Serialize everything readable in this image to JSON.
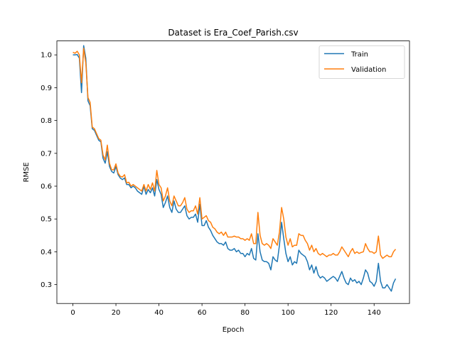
{
  "chart_data": {
    "type": "line",
    "title": "Dataset is Era_Coef_Parish.csv",
    "xlabel": "Epoch",
    "ylabel": "RMSE",
    "xlim": [
      -7.45,
      156.45
    ],
    "ylim": [
      0.2425,
      1.0425
    ],
    "xticks": [
      0,
      20,
      40,
      60,
      80,
      100,
      120,
      140
    ],
    "yticks": [
      0.3,
      0.4,
      0.5,
      0.6,
      0.7,
      0.8,
      0.9,
      1.0
    ],
    "ytick_labels": [
      "0.3",
      "0.4",
      "0.5",
      "0.6",
      "0.7",
      "0.8",
      "0.9",
      "1.0"
    ],
    "grid": false,
    "legend": "top-right",
    "series": [
      {
        "name": "Train",
        "color": "#1f77b4",
        "values": [
          1.0,
          1.0,
          1.001,
          0.99,
          0.885,
          1.028,
          0.99,
          0.86,
          0.845,
          0.775,
          0.77,
          0.755,
          0.74,
          0.735,
          0.685,
          0.67,
          0.705,
          0.66,
          0.645,
          0.64,
          0.66,
          0.635,
          0.625,
          0.62,
          0.625,
          0.605,
          0.605,
          0.595,
          0.6,
          0.595,
          0.585,
          0.58,
          0.575,
          0.6,
          0.575,
          0.59,
          0.58,
          0.595,
          0.57,
          0.62,
          0.59,
          0.575,
          0.535,
          0.55,
          0.57,
          0.535,
          0.52,
          0.555,
          0.53,
          0.52,
          0.52,
          0.53,
          0.54,
          0.51,
          0.5,
          0.505,
          0.505,
          0.515,
          0.49,
          0.545,
          0.48,
          0.48,
          0.495,
          0.475,
          0.465,
          0.45,
          0.44,
          0.43,
          0.425,
          0.425,
          0.42,
          0.43,
          0.41,
          0.405,
          0.405,
          0.41,
          0.4,
          0.405,
          0.395,
          0.395,
          0.385,
          0.395,
          0.39,
          0.41,
          0.38,
          0.375,
          0.455,
          0.4,
          0.375,
          0.37,
          0.37,
          0.365,
          0.345,
          0.385,
          0.375,
          0.37,
          0.42,
          0.49,
          0.44,
          0.395,
          0.37,
          0.385,
          0.36,
          0.37,
          0.365,
          0.405,
          0.395,
          0.39,
          0.385,
          0.37,
          0.345,
          0.36,
          0.335,
          0.355,
          0.33,
          0.32,
          0.325,
          0.32,
          0.31,
          0.315,
          0.32,
          0.325,
          0.32,
          0.31,
          0.325,
          0.34,
          0.32,
          0.305,
          0.3,
          0.32,
          0.31,
          0.315,
          0.305,
          0.31,
          0.3,
          0.32,
          0.345,
          0.335,
          0.31,
          0.305,
          0.295,
          0.31,
          0.365,
          0.31,
          0.29,
          0.29,
          0.3,
          0.29,
          0.28,
          0.305,
          0.318
        ]
      },
      {
        "name": "Validation",
        "color": "#ff7f0e",
        "values": [
          1.008,
          1.005,
          1.011,
          1.0,
          0.915,
          1.02,
          0.975,
          0.87,
          0.855,
          0.78,
          0.775,
          0.76,
          0.745,
          0.74,
          0.695,
          0.68,
          0.725,
          0.67,
          0.65,
          0.65,
          0.668,
          0.64,
          0.63,
          0.628,
          0.635,
          0.61,
          0.612,
          0.6,
          0.605,
          0.6,
          0.595,
          0.59,
          0.585,
          0.605,
          0.585,
          0.605,
          0.59,
          0.61,
          0.585,
          0.648,
          0.605,
          0.595,
          0.555,
          0.57,
          0.595,
          0.555,
          0.54,
          0.57,
          0.555,
          0.54,
          0.54,
          0.55,
          0.565,
          0.53,
          0.52,
          0.525,
          0.525,
          0.54,
          0.515,
          0.565,
          0.5,
          0.505,
          0.51,
          0.495,
          0.49,
          0.475,
          0.47,
          0.46,
          0.455,
          0.46,
          0.45,
          0.46,
          0.445,
          0.445,
          0.445,
          0.448,
          0.445,
          0.445,
          0.44,
          0.44,
          0.435,
          0.44,
          0.435,
          0.455,
          0.425,
          0.425,
          0.52,
          0.45,
          0.425,
          0.42,
          0.425,
          0.42,
          0.41,
          0.44,
          0.43,
          0.42,
          0.46,
          0.535,
          0.5,
          0.445,
          0.42,
          0.44,
          0.415,
          0.42,
          0.42,
          0.455,
          0.45,
          0.45,
          0.435,
          0.425,
          0.405,
          0.42,
          0.4,
          0.41,
          0.395,
          0.39,
          0.395,
          0.39,
          0.385,
          0.39,
          0.39,
          0.395,
          0.39,
          0.39,
          0.4,
          0.415,
          0.405,
          0.395,
          0.385,
          0.4,
          0.41,
          0.395,
          0.4,
          0.395,
          0.398,
          0.4,
          0.425,
          0.41,
          0.4,
          0.4,
          0.395,
          0.4,
          0.448,
          0.39,
          0.38,
          0.385,
          0.39,
          0.385,
          0.385,
          0.4,
          0.408
        ]
      }
    ]
  }
}
